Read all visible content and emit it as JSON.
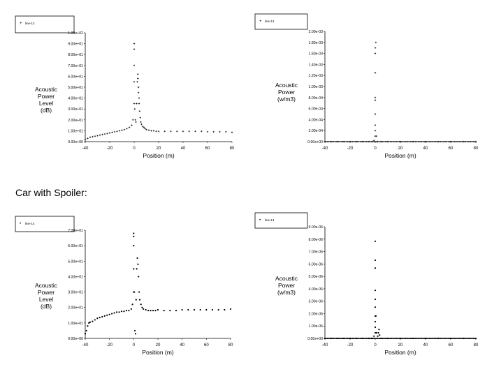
{
  "caption": "Car with Spoiler:",
  "chart_data": [
    {
      "type": "scatter",
      "legend": "line-12",
      "xlabel": "Position (m)",
      "ylabel": [
        "Acoustic",
        "Power",
        "Level",
        "(dB)"
      ],
      "xlim": [
        -40,
        80
      ],
      "ylim": [
        0,
        100
      ],
      "xticks": [
        "-40",
        "-20",
        "0",
        "20",
        "40",
        "60",
        "80"
      ],
      "yticks": [
        "0.00e+00",
        "1.00e+01",
        "2.00e+01",
        "3.00e+01",
        "4.00e+01",
        "5.00e+01",
        "6.00e+01",
        "7.00e+01",
        "8.00e+01",
        "9.00e+01",
        "1.00e+02"
      ],
      "x": [
        -40,
        -38,
        -36,
        -34,
        -32,
        -30,
        -28,
        -26,
        -24,
        -22,
        -20,
        -18,
        -16,
        -14,
        -12,
        -10,
        -8,
        -6,
        -4,
        -2,
        -1,
        0,
        0,
        0,
        0,
        0,
        0.5,
        1,
        1.5,
        2,
        2.5,
        3,
        3,
        3.5,
        3.5,
        4,
        4,
        4.5,
        5,
        5.5,
        6,
        7,
        8,
        9,
        10,
        12,
        14,
        16,
        18,
        20,
        25,
        30,
        35,
        40,
        45,
        50,
        55,
        60,
        65,
        70,
        75,
        80
      ],
      "y": [
        2,
        3,
        4,
        4.5,
        5,
        5.5,
        6,
        6.5,
        7,
        7.5,
        8,
        8.5,
        9,
        9.5,
        10,
        10.5,
        11,
        12,
        13,
        15,
        20,
        35,
        55,
        70,
        85,
        90,
        30,
        20,
        18,
        35,
        55,
        62,
        58,
        50,
        45,
        40,
        35,
        28,
        22,
        18,
        16,
        14,
        13,
        12,
        11,
        10.5,
        10,
        10,
        9.5,
        9.5,
        9.5,
        9.5,
        9.5,
        9.5,
        9.5,
        9.5,
        9.5,
        9,
        9,
        9,
        9,
        8.5
      ]
    },
    {
      "type": "scatter",
      "legend": "line-12",
      "xlabel": "Position (m)",
      "ylabel": [
        "Acoustic",
        "Power",
        "(w/m3)"
      ],
      "xlim": [
        -40,
        80
      ],
      "ylim": [
        0,
        0.002
      ],
      "xticks": [
        "-40",
        "-20",
        "0",
        "20",
        "40",
        "60",
        "80"
      ],
      "yticks": [
        "0.00e+00",
        "2.00e-04",
        "4.00e-04",
        "6.00e-04",
        "8.00e-04",
        "1.00e-03",
        "1.20e-03",
        "1.40e-03",
        "1.60e-03",
        "1.80e-03",
        "2.00e-03"
      ],
      "x": [
        -40,
        -35,
        -30,
        -25,
        -20,
        -15,
        -10,
        -5,
        -2,
        -1,
        0,
        0,
        0,
        0,
        0,
        0,
        0,
        0,
        0,
        0.5,
        1,
        2,
        5,
        10,
        20,
        30,
        40,
        50,
        60,
        70,
        80
      ],
      "y": [
        0,
        0,
        0,
        0,
        0,
        0,
        0,
        0,
        0,
        2e-05,
        0.0001,
        0.0002,
        0.0003,
        0.0005,
        0.00075,
        0.0008,
        0.00125,
        0.0016,
        0.0017,
        0.0018,
        0.0001,
        0,
        0,
        0,
        0,
        0,
        0,
        0,
        0,
        0,
        0
      ]
    },
    {
      "type": "scatter",
      "legend": "line-14",
      "xlabel": "Position (m)",
      "ylabel": [
        "Acoustic",
        "Power",
        "Level",
        "(dB)"
      ],
      "xlim": [
        -40,
        80
      ],
      "ylim": [
        0,
        70
      ],
      "xticks": [
        "-40",
        "-20",
        "0",
        "20",
        "40",
        "60",
        "80"
      ],
      "yticks": [
        "0.00e+00",
        "1.00e+01",
        "2.00e+01",
        "3.00e+01",
        "4.00e+01",
        "5.00e+01",
        "6.00e+01",
        "7.00e+01"
      ],
      "x": [
        -40,
        -39,
        -38,
        -37,
        -36,
        -34,
        -32,
        -30,
        -28,
        -26,
        -24,
        -22,
        -20,
        -18,
        -16,
        -14,
        -12,
        -10,
        -8,
        -6,
        -4,
        -2,
        -1,
        0,
        0,
        0,
        0,
        0,
        0.5,
        1,
        1.5,
        2,
        2.5,
        3,
        3.5,
        4,
        4.5,
        5,
        6,
        7,
        8,
        10,
        12,
        14,
        16,
        18,
        20,
        25,
        30,
        35,
        40,
        45,
        50,
        55,
        60,
        65,
        70,
        75,
        80
      ],
      "y": [
        3,
        5,
        8,
        10,
        10.5,
        11,
        12,
        13,
        13.5,
        14,
        14.5,
        15,
        15.5,
        16,
        16.5,
        17,
        17,
        17.5,
        17.5,
        18,
        18,
        19,
        22,
        30,
        45,
        60,
        66,
        68,
        30,
        5,
        3,
        25,
        45,
        52,
        48,
        40,
        30,
        25,
        22,
        20,
        19,
        18.5,
        18,
        18,
        18,
        18,
        18.5,
        18,
        18,
        18,
        18.5,
        18.5,
        18.5,
        18.5,
        18.5,
        18.5,
        18.5,
        18.5,
        19
      ]
    },
    {
      "type": "scatter",
      "legend": "line-14",
      "xlabel": "Position (m)",
      "ylabel": [
        "Acoustic",
        "Power",
        "(w/m3)"
      ],
      "xlim": [
        -40,
        80
      ],
      "ylim": [
        0,
        1e-05
      ],
      "xticks": [
        "-40",
        "-20",
        "0",
        "20",
        "40",
        "60",
        "80"
      ],
      "yticks": [
        "0.00e+00",
        "1.00e-06",
        "2.00e-06",
        "3.00e-06",
        "4.00e-06",
        "5.00e-06",
        "6.00e-06",
        "7.00e-06",
        "8.00e-06",
        "9.00e-06"
      ],
      "x": [
        -40,
        -35,
        -30,
        -25,
        -20,
        -15,
        -10,
        -5,
        -3,
        -2,
        -1,
        0,
        0,
        0,
        0,
        0,
        0,
        0,
        0,
        0,
        0,
        0.5,
        1,
        2,
        2.5,
        3,
        3.5,
        5,
        10,
        20,
        30,
        40,
        50,
        60,
        70,
        80
      ],
      "y": [
        0,
        0,
        0,
        0,
        0,
        0,
        0,
        0,
        0,
        0,
        2e-07,
        5e-07,
        1e-06,
        1.5e-06,
        2e-06,
        2.8e-06,
        3.5e-06,
        4.3e-06,
        6.3e-06,
        7e-06,
        8.7e-06,
        2e-06,
        5e-07,
        2e-07,
        5e-07,
        8e-07,
        3e-07,
        0,
        0,
        0,
        0,
        0,
        0,
        0,
        0,
        0
      ]
    }
  ]
}
